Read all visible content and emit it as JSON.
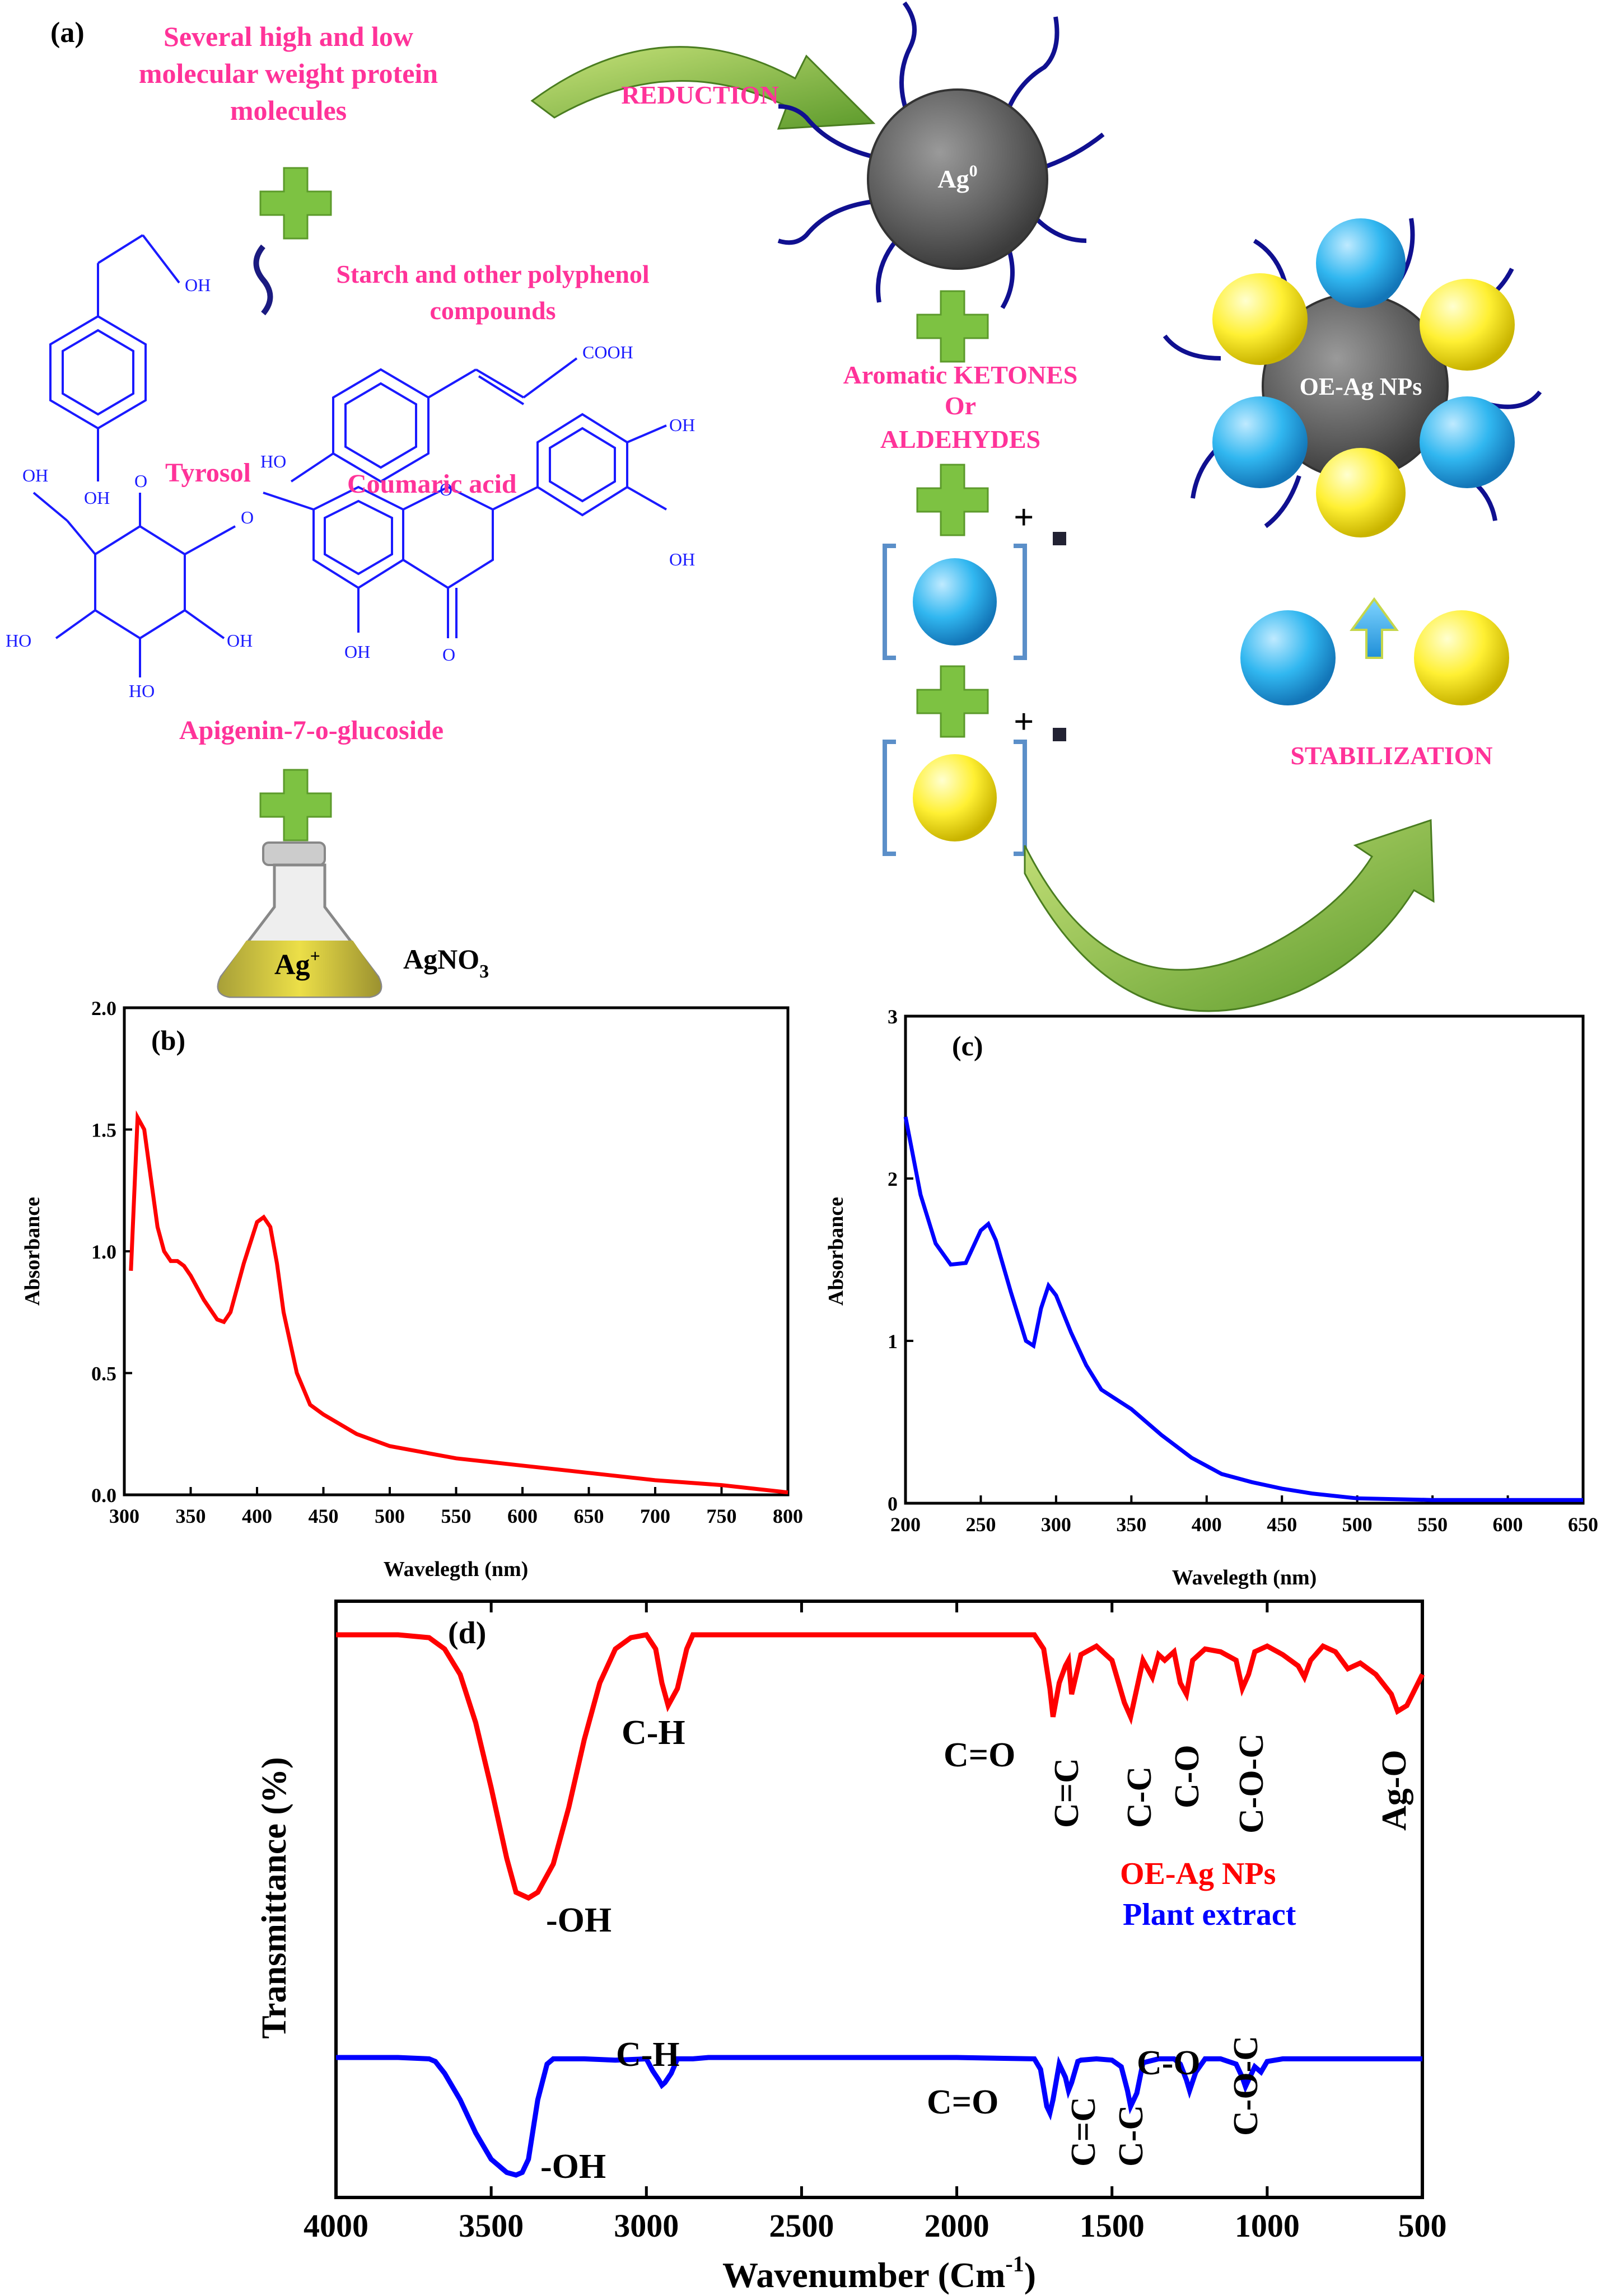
{
  "panel_a": {
    "label": "(a)",
    "proteins": [
      "Several high and low",
      "molecular weight protein",
      "molecules"
    ],
    "starch": [
      "Starch and other polyphenol",
      "compounds"
    ],
    "tyrosol": "Tyrosol",
    "coumaric": "Coumaric acid",
    "apigenin": "Apigenin-7-o-glucoside",
    "agno3_main": "AgNO",
    "agno3_sub": "3",
    "ag_plus": "Ag",
    "ag_plus_sup": "+",
    "reduction": "REDUCTION",
    "ag0": "Ag",
    "ag0_sup": "0",
    "ketones": [
      "Aromatic KETONES",
      "Or",
      "ALDEHYDES"
    ],
    "plus_sign": "+",
    "stabilization": "STABILIZATION",
    "oe_ag": "OE-Ag NPs",
    "chem_labels": {
      "oh": "OH",
      "cooh": "COOH",
      "ho": "HO",
      "o": "O"
    },
    "colors": {
      "pink": "#ff3399",
      "blue_struct": "#1a1aff",
      "green_plus": "#7dc242",
      "arrow_green": "#8bc34a",
      "ag_gray": "#666666",
      "cyan": "#29b6f6",
      "yellow": "#ffee33"
    }
  },
  "chart_data": [
    {
      "panel": "(b)",
      "type": "line",
      "xlabel": "Wavelegth (nm)",
      "ylabel": "Absorbance",
      "xlim": [
        300,
        800
      ],
      "ylim": [
        0,
        2
      ],
      "xticks": [
        "300",
        "350",
        "400",
        "450",
        "500",
        "550",
        "600",
        "650",
        "700",
        "750",
        "800"
      ],
      "yticks": [
        "0.0",
        "0.5",
        "1.0",
        "1.5",
        "2.0"
      ],
      "color": "#ff0000",
      "series": [
        {
          "x": [
            305,
            310,
            315,
            320,
            325,
            330,
            335,
            340,
            345,
            350,
            360,
            370,
            375,
            380,
            390,
            400,
            405,
            410,
            415,
            420,
            430,
            440,
            450,
            475,
            500,
            550,
            600,
            650,
            700,
            750,
            800
          ],
          "y": [
            0.92,
            1.55,
            1.5,
            1.3,
            1.1,
            1.0,
            0.96,
            0.96,
            0.94,
            0.9,
            0.8,
            0.72,
            0.71,
            0.75,
            0.95,
            1.12,
            1.14,
            1.1,
            0.95,
            0.75,
            0.5,
            0.37,
            0.33,
            0.25,
            0.2,
            0.15,
            0.12,
            0.09,
            0.06,
            0.04,
            0.01
          ]
        }
      ]
    },
    {
      "panel": "(c)",
      "type": "line",
      "xlabel": "Wavelegth (nm)",
      "ylabel": "Absorbance",
      "xlim": [
        200,
        650
      ],
      "ylim": [
        0,
        3
      ],
      "xticks": [
        "200",
        "250",
        "300",
        "350",
        "400",
        "450",
        "500",
        "550",
        "600",
        "650"
      ],
      "yticks": [
        "0",
        "1",
        "2",
        "3"
      ],
      "color": "#0000ff",
      "series": [
        {
          "x": [
            200,
            210,
            220,
            230,
            240,
            250,
            255,
            260,
            270,
            280,
            285,
            290,
            295,
            300,
            310,
            320,
            330,
            340,
            350,
            370,
            390,
            410,
            430,
            450,
            470,
            500,
            550,
            600,
            650
          ],
          "y": [
            2.38,
            1.9,
            1.6,
            1.47,
            1.48,
            1.68,
            1.72,
            1.62,
            1.3,
            1.0,
            0.97,
            1.2,
            1.34,
            1.28,
            1.05,
            0.85,
            0.7,
            0.64,
            0.58,
            0.42,
            0.28,
            0.18,
            0.13,
            0.09,
            0.06,
            0.03,
            0.02,
            0.02,
            0.02
          ]
        }
      ]
    },
    {
      "panel": "(d)",
      "type": "line",
      "xlabel_main": "Wavenumber (Cm",
      "xlabel_sup": "-1",
      "xlabel_end": ")",
      "ylabel": "Transmittance (%)",
      "xlim": [
        4000,
        500
      ],
      "xticks": [
        "4000",
        "3500",
        "3000",
        "2500",
        "2000",
        "1500",
        "1000",
        "500"
      ],
      "series": [
        {
          "name": "OE-Ag NPs",
          "color": "#ff0000",
          "x": [
            4000,
            3800,
            3700,
            3650,
            3600,
            3550,
            3500,
            3450,
            3420,
            3380,
            3350,
            3300,
            3250,
            3200,
            3150,
            3100,
            3050,
            3000,
            2970,
            2950,
            2930,
            2900,
            2870,
            2850,
            2820,
            2700,
            2500,
            2000,
            1750,
            1720,
            1700,
            1690,
            1670,
            1650,
            1640,
            1630,
            1600,
            1550,
            1500,
            1460,
            1440,
            1420,
            1400,
            1370,
            1350,
            1330,
            1300,
            1280,
            1260,
            1240,
            1200,
            1150,
            1100,
            1080,
            1060,
            1040,
            1000,
            950,
            900,
            880,
            860,
            820,
            780,
            740,
            700,
            650,
            600,
            580,
            550,
            500
          ],
          "y": [
            99,
            99,
            98,
            94,
            85,
            68,
            45,
            20,
            8,
            6,
            8,
            18,
            38,
            62,
            82,
            94,
            98,
            99,
            94,
            82,
            74,
            80,
            94,
            99,
            99,
            99,
            99,
            99,
            99,
            94,
            80,
            70,
            82,
            88,
            90,
            78,
            92,
            95,
            90,
            75,
            70,
            80,
            90,
            84,
            92,
            90,
            93,
            82,
            78,
            90,
            94,
            93,
            90,
            80,
            85,
            93,
            95,
            92,
            88,
            84,
            90,
            95,
            93,
            87,
            89,
            85,
            78,
            72,
            74,
            85
          ]
        },
        {
          "name": "Plant extract",
          "color": "#0000ff",
          "x": [
            4000,
            3900,
            3800,
            3700,
            3680,
            3650,
            3600,
            3550,
            3500,
            3450,
            3420,
            3400,
            3380,
            3350,
            3320,
            3300,
            3200,
            3100,
            3000,
            2980,
            2960,
            2950,
            2940,
            2920,
            2900,
            2850,
            2800,
            2500,
            2000,
            1750,
            1730,
            1710,
            1700,
            1690,
            1670,
            1650,
            1640,
            1630,
            1610,
            1600,
            1550,
            1500,
            1470,
            1450,
            1440,
            1420,
            1400,
            1350,
            1300,
            1280,
            1260,
            1250,
            1230,
            1200,
            1150,
            1100,
            1080,
            1070,
            1060,
            1040,
            1020,
            1000,
            950,
            900,
            800,
            700,
            600,
            500
          ],
          "y": [
            97,
            97,
            97,
            96,
            94,
            85,
            65,
            40,
            20,
            10,
            8,
            10,
            20,
            65,
            92,
            96,
            96,
            95,
            96,
            87,
            80,
            76,
            78,
            85,
            96,
            96,
            97,
            97,
            97,
            96,
            88,
            60,
            55,
            65,
            92,
            82,
            72,
            78,
            94,
            95,
            96,
            95,
            90,
            72,
            60,
            70,
            93,
            96,
            96,
            92,
            80,
            72,
            86,
            96,
            96,
            92,
            82,
            75,
            80,
            90,
            86,
            94,
            96,
            96,
            96,
            96,
            96,
            96
          ]
        }
      ],
      "annotations": {
        "red": [
          "-OH",
          "C-H",
          "C=O",
          "C=C",
          "C-C",
          "C-O",
          "C-O-C",
          "Ag-O"
        ],
        "blue": [
          "-OH",
          "C-H",
          "C=O",
          "C=C",
          "C-C",
          "C-O",
          "C-O-C"
        ]
      }
    }
  ]
}
